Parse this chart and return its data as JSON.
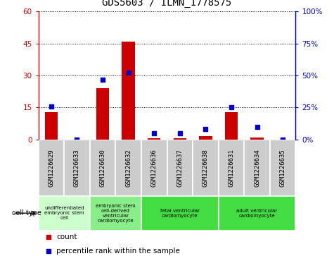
{
  "title": "GDS5603 / ILMN_1778575",
  "samples": [
    "GSM1226629",
    "GSM1226633",
    "GSM1226630",
    "GSM1226632",
    "GSM1226636",
    "GSM1226637",
    "GSM1226638",
    "GSM1226631",
    "GSM1226634",
    "GSM1226635"
  ],
  "counts": [
    13,
    0,
    24,
    46,
    0.5,
    0.5,
    1.5,
    13,
    1,
    0
  ],
  "percentiles": [
    26,
    0,
    47,
    52,
    5,
    5,
    8,
    25,
    10,
    0
  ],
  "ylim_left": [
    0,
    60
  ],
  "ylim_right": [
    0,
    100
  ],
  "yticks_left": [
    0,
    15,
    30,
    45,
    60
  ],
  "yticks_right": [
    0,
    25,
    50,
    75,
    100
  ],
  "ytick_labels_left": [
    "0",
    "15",
    "30",
    "45",
    "60"
  ],
  "ytick_labels_right": [
    "0%",
    "25%",
    "50%",
    "75%",
    "100%"
  ],
  "bar_color": "#cc0000",
  "dot_color": "#0000cc",
  "cell_groups": [
    {
      "label": "undifferentiated\nembryonic stem\ncell",
      "start": 0,
      "end": 2,
      "color": "#ccffcc"
    },
    {
      "label": "embryonic stem\ncell-derived\nventricular\ncardiomyocyte",
      "start": 2,
      "end": 4,
      "color": "#88ee88"
    },
    {
      "label": "fetal ventricular\ncardiomyocyte",
      "start": 4,
      "end": 7,
      "color": "#44dd44"
    },
    {
      "label": "adult ventricular\ncardiomyocyte",
      "start": 7,
      "end": 10,
      "color": "#44dd44"
    }
  ],
  "cell_type_label": "cell type",
  "legend_count_label": "count",
  "legend_percentile_label": "percentile rank within the sample",
  "gray_box_color": "#cccccc",
  "dot_size": 25,
  "bar_width": 0.5
}
